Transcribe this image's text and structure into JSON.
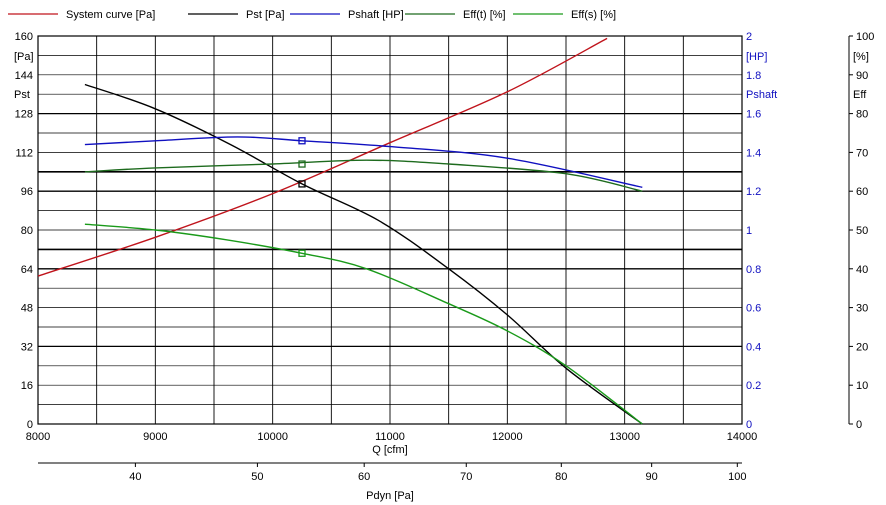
{
  "chart_data": {
    "type": "line",
    "legend": [
      {
        "label": "System curve [Pa]",
        "color": "#c0141c"
      },
      {
        "label": "Pst [Pa]",
        "color": "#000000"
      },
      {
        "label": "Pshaft [HP]",
        "color": "#1010c0"
      },
      {
        "label": "Eff(t)  [%]",
        "color": "#1e6b1e"
      },
      {
        "label": "Eff(s)  [%]",
        "color": "#1a9a1a"
      }
    ],
    "x_axis": {
      "label": "Q [cfm]",
      "range": [
        8000,
        14000
      ],
      "ticks": [
        "8000",
        "9000",
        "10000",
        "11000",
        "12000",
        "13000",
        "14000"
      ]
    },
    "x2_axis": {
      "label": "Pdyn [Pa]",
      "ticks": [
        {
          "label": "40",
          "q": 8830
        },
        {
          "label": "50",
          "q": 9870
        },
        {
          "label": "60",
          "q": 10780
        },
        {
          "label": "70",
          "q": 11650
        },
        {
          "label": "80",
          "q": 12460
        },
        {
          "label": "90",
          "q": 13230
        },
        {
          "label": "100",
          "q": 13960
        }
      ]
    },
    "y_left": {
      "unit": "[Pa]",
      "name": "Pst",
      "range": [
        0,
        160
      ],
      "ticks": [
        "0",
        "16",
        "32",
        "48",
        "64",
        "80",
        "96",
        "112",
        "128",
        "144",
        "160"
      ]
    },
    "y_mid": {
      "unit": "[HP]",
      "name": "Pshaft",
      "range": [
        0,
        2
      ],
      "ticks": [
        "0",
        "0.2",
        "0.4",
        "0.6",
        "0.8",
        "1",
        "1.2",
        "1.4",
        "1.6",
        "1.8",
        "2"
      ]
    },
    "y_right": {
      "unit": "[%]",
      "name": "Eff",
      "range": [
        0,
        100
      ],
      "ticks": [
        "0",
        "10",
        "20",
        "30",
        "40",
        "50",
        "60",
        "70",
        "80",
        "90",
        "100"
      ]
    },
    "series": [
      {
        "name": "System curve [Pa]",
        "axis": "left",
        "color": "#c0141c",
        "x": [
          8000,
          9000,
          10000,
          11000,
          12000,
          12850
        ],
        "y": [
          61,
          77,
          95,
          116,
          137,
          159
        ]
      },
      {
        "name": "Pst [Pa]",
        "axis": "left",
        "color": "#000000",
        "x": [
          8400,
          9000,
          9650,
          10250,
          10900,
          11500,
          12000,
          12500,
          13150
        ],
        "y": [
          140,
          130,
          115,
          99,
          84,
          64,
          45,
          23,
          0
        ],
        "marker": {
          "x": 10250,
          "y": 99
        }
      },
      {
        "name": "Pshaft [HP]",
        "axis": "mid",
        "color": "#1010c0",
        "x": [
          8400,
          9000,
          9700,
          10250,
          11000,
          12000,
          13150
        ],
        "y": [
          1.44,
          1.46,
          1.48,
          1.46,
          1.43,
          1.37,
          1.22
        ],
        "marker": {
          "x": 10250,
          "y": 1.46
        }
      },
      {
        "name": "Eff(t)  [%]",
        "axis": "right",
        "color": "#1e6b1e",
        "x": [
          8400,
          9000,
          10000,
          10800,
          11500,
          12500,
          13150
        ],
        "y": [
          65,
          66,
          67,
          68,
          67,
          64.5,
          60
        ],
        "marker": {
          "x": 10250,
          "y": 67
        }
      },
      {
        "name": "Eff(s)  [%]",
        "axis": "right",
        "color": "#1a9a1a",
        "x": [
          8400,
          9000,
          9600,
          10250,
          10800,
          11500,
          12000,
          12500,
          13150
        ],
        "y": [
          51.5,
          50,
          47.5,
          44,
          40,
          31,
          24,
          15,
          0
        ],
        "marker": {
          "x": 10250,
          "y": 44
        }
      }
    ]
  }
}
